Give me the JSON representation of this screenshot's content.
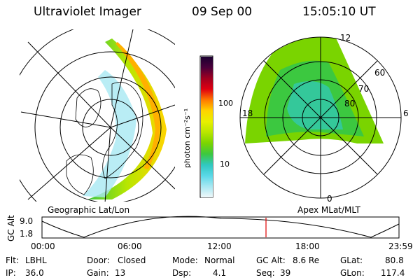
{
  "header": {
    "instrument": "Ultraviolet Imager",
    "date": "09 Sep 00",
    "time": "15:05:10 UT"
  },
  "colorbar": {
    "label": "photon cm⁻²s⁻¹",
    "ticks": [
      "100",
      "10"
    ],
    "colors": [
      "#1a0030",
      "#4a003a",
      "#a00020",
      "#e00010",
      "#ff7a00",
      "#ffd400",
      "#e8f000",
      "#b8e600",
      "#7ad400",
      "#3cc840",
      "#30c8c0",
      "#5ad8e8",
      "#a8e8f2",
      "#f0f8fa"
    ]
  },
  "left_map": {
    "caption": "Geographic Lat/Lon"
  },
  "right_map": {
    "caption": "Apex MLat/MLT",
    "lat_labels": [
      "60",
      "70",
      "80"
    ],
    "mlt_labels": [
      "12",
      "18",
      "6",
      "0"
    ]
  },
  "timeline": {
    "ylabel": "GC Alt",
    "yticks": [
      "9.0",
      "1.8"
    ],
    "xticks": [
      "00:00",
      "06:00",
      "12:00",
      "18:00",
      "23:59"
    ],
    "current_time": "15:05"
  },
  "status": {
    "filter_label": "Flt:",
    "filter": "LBHL",
    "door_label": "Door:",
    "door": "Closed",
    "mode_label": "Mode:",
    "mode": "Normal",
    "gcalt_label": "GC Alt:",
    "gcalt": "8.6 Re",
    "glat_label": "GLat:",
    "glat": "80.8",
    "ip_label": "IP:",
    "ip": "36.0",
    "gain_label": "Gain:",
    "gain": "13",
    "dsp_label": "Dsp:",
    "dsp": "4.1",
    "seq_label": "Seq:",
    "seq": "39",
    "glon_label": "GLon:",
    "glon": "117.4"
  }
}
